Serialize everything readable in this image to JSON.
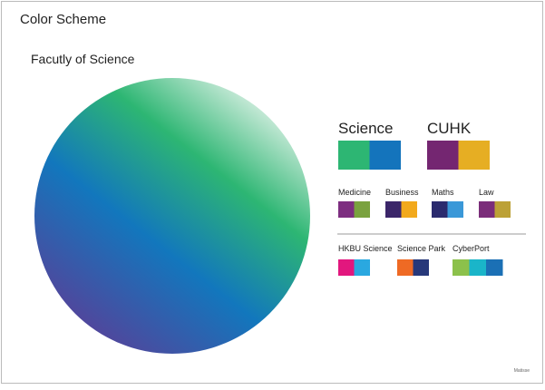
{
  "header": {
    "title": "Color Scheme"
  },
  "section": {
    "title": "Facutly of Science",
    "circle_gradient": [
      "#e9f5ee",
      "#2db673",
      "#1277bd",
      "#5a3f97"
    ]
  },
  "groups": [
    {
      "name": "Science",
      "colors": [
        "#2db673",
        "#1474bc"
      ]
    },
    {
      "name": "CUHK",
      "colors": [
        "#742671",
        "#e6ae23"
      ]
    },
    {
      "name": "Medicine",
      "colors": [
        "#7d2e80",
        "#7aa23f"
      ]
    },
    {
      "name": "Business",
      "colors": [
        "#3b2669",
        "#f2a91c"
      ]
    },
    {
      "name": "Maths",
      "colors": [
        "#2a2a6e",
        "#3a98d8"
      ]
    },
    {
      "name": "Law",
      "colors": [
        "#7b2d7a",
        "#bca136"
      ]
    },
    {
      "name": "HKBU Science",
      "colors": [
        "#e2177e",
        "#2aa8e0"
      ]
    },
    {
      "name": "Science Park",
      "colors": [
        "#ef6a24",
        "#27387a"
      ]
    },
    {
      "name": "CyberPort",
      "colors": [
        "#8cc14b",
        "#1ab5c9",
        "#1b70b5"
      ]
    }
  ],
  "footer": "Matisse"
}
